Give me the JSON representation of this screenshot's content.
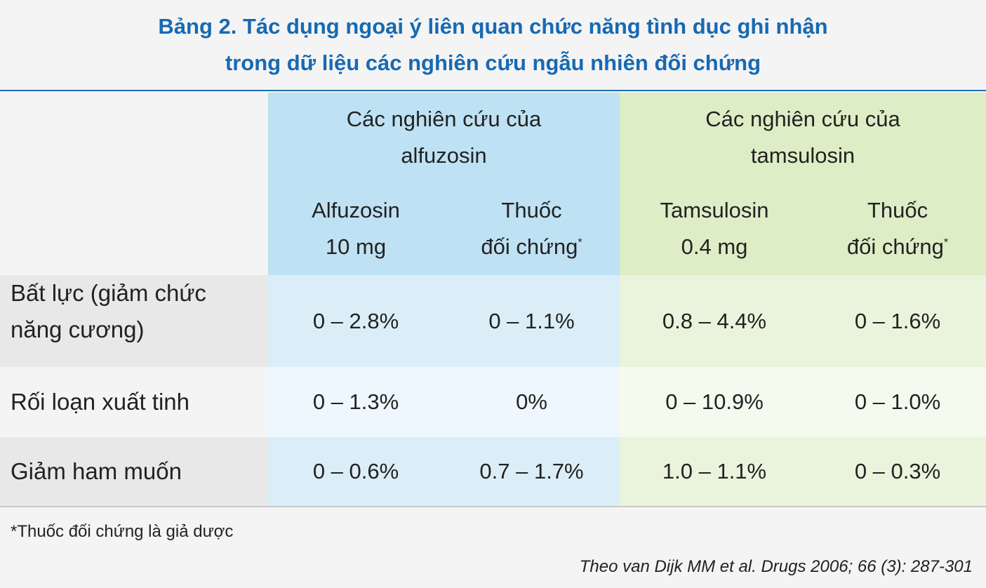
{
  "title": {
    "line1": "Bảng 2. Tác dụng ngoại ý liên quan chức năng tình dục ghi nhận",
    "line2": "trong dữ liệu các nghiên cứu ngẫu nhiên đối chứng"
  },
  "header": {
    "group_alfuzosin": {
      "line1": "Các nghiên cứu của",
      "line2": "alfuzosin"
    },
    "group_tamsulosin": {
      "line1": "Các nghiên cứu của",
      "line2": "tamsulosin"
    },
    "columns": [
      {
        "line1": "Alfuzosin",
        "line2": "10 mg",
        "sup": ""
      },
      {
        "line1": "Thuốc",
        "line2": "đối chứng",
        "sup": "*"
      },
      {
        "line1": "Tamsulosin",
        "line2": "0.4 mg",
        "sup": ""
      },
      {
        "line1": "Thuốc",
        "line2": "đối chứng",
        "sup": "*"
      }
    ]
  },
  "rows": [
    {
      "label_line1": "Bất lực (giảm chức",
      "label_line2": "năng cương)",
      "values": [
        "0 – 2.8%",
        "0 – 1.1%",
        "0.8 – 4.4%",
        "0 – 1.6%"
      ]
    },
    {
      "label_line1": "Rối loạn xuất tinh",
      "label_line2": "",
      "values": [
        "0 – 1.3%",
        "0%",
        "0 – 10.9%",
        "0 – 1.0%"
      ]
    },
    {
      "label_line1": "Giảm ham muốn",
      "label_line2": "",
      "values": [
        "0 – 0.6%",
        "0.7 – 1.7%",
        "1.0 – 1.1%",
        "0 – 0.3%"
      ]
    }
  ],
  "footnote": "*Thuốc đối chứng là giả dược",
  "source": "Theo van Dijk MM et al. Drugs 2006; 66 (3): 287-301",
  "colors": {
    "title": "#1769b3",
    "blue_header": "#bee1f3",
    "green_header": "#ddedc6",
    "blue_row_dark": "#dbeef8",
    "blue_row_light": "#eef7fd",
    "green_row_dark": "#eaf4dc",
    "green_row_light": "#f5faef",
    "label_row_dark": "#e8e8e8",
    "label_row_light": "#f4f4f4"
  }
}
